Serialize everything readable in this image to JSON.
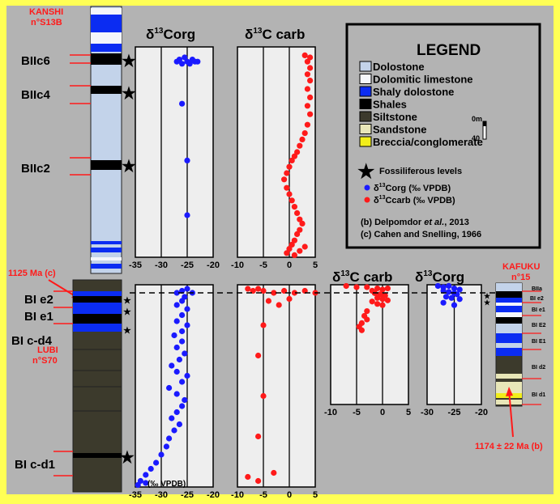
{
  "colors": {
    "frame": "#ffff55",
    "panel": "#b3b3b3",
    "plot_bg": "#eeeeee",
    "red_label": "#ff1a1a",
    "blue_points": "#1a1aff",
    "red_points": "#ff1a1a"
  },
  "kanshi": {
    "name": "KANSHI",
    "site": "n°S13B",
    "levels": [
      "BIIc6",
      "BIIc4",
      "BIIc2"
    ]
  },
  "lubi": {
    "name": "LUBI",
    "site": "n°S70",
    "age": "1125 Ma (c)",
    "levels": [
      "BI e2",
      "BI e1",
      "BI c-d4",
      "BI c-d1"
    ]
  },
  "kafuku": {
    "name": "KAFUKU",
    "site": "n°15",
    "age": "1174 ± 22 Ma (b)",
    "levels": [
      "BIIa",
      "BI e2",
      "BI e1",
      "BI E2",
      "BI E1",
      "BI d2",
      "BI d1"
    ]
  },
  "legend": {
    "title": "LEGEND",
    "lithology": [
      {
        "label": "Dolostone",
        "color": "#c3d3ea"
      },
      {
        "label": "Dolomitic limestone",
        "color": "#f4f6fb"
      },
      {
        "label": "Shaly dolostone",
        "color": "#0b2cf2"
      },
      {
        "label": "Shales",
        "color": "#000000"
      },
      {
        "label": "Siltstone",
        "color": "#3c3a2c"
      },
      {
        "label": "Sandstone",
        "color": "#e8e6b8"
      },
      {
        "label": "Breccia/conglomerate",
        "color": "#f2ee1a"
      }
    ],
    "scale_top": "0m",
    "scale_bottom": "40",
    "fossil": "Fossiliferous levels",
    "series_corg": "δ13Corg (‰ VPDB)",
    "series_ccarb": "δ13Ccarb (‰ VPDB)",
    "ref_b": "(b) Delpomdor et al., 2013",
    "ref_c": "(c) Cahen and Snelling, 1966"
  },
  "chart_data": [
    {
      "type": "scatter",
      "title": "δ13Corg",
      "xlabel": "",
      "xlim": [
        -35,
        -20
      ],
      "xticks": [
        "-35",
        "-30",
        "-25",
        "-20"
      ],
      "ylabel": "",
      "y_unit": "relative stratigraphic position (0 = base of Kanshi log window, 1 = top)",
      "points": [
        [
          -27,
          0.93
        ],
        [
          -26.5,
          0.94
        ],
        [
          -26,
          0.92
        ],
        [
          -25.5,
          0.95
        ],
        [
          -25,
          0.93
        ],
        [
          -24.5,
          0.92
        ],
        [
          -24,
          0.94
        ],
        [
          -23.5,
          0.93
        ],
        [
          -23,
          0.93
        ],
        [
          -26,
          0.73
        ],
        [
          -25,
          0.46
        ],
        [
          -25,
          0.2
        ]
      ],
      "color": "#1a1aff"
    },
    {
      "type": "scatter",
      "title": "δ13C carb",
      "xlim": [
        -10,
        5
      ],
      "xticks": [
        "-10",
        "-5",
        "0",
        "5"
      ],
      "points": [
        [
          3,
          0.96
        ],
        [
          4,
          0.95
        ],
        [
          3.5,
          0.93
        ],
        [
          4,
          0.9
        ],
        [
          3.5,
          0.87
        ],
        [
          4,
          0.84
        ],
        [
          3.5,
          0.8
        ],
        [
          4,
          0.76
        ],
        [
          3.5,
          0.72
        ],
        [
          4,
          0.68
        ],
        [
          3.5,
          0.63
        ],
        [
          3,
          0.59
        ],
        [
          2.5,
          0.56
        ],
        [
          2,
          0.53
        ],
        [
          1.5,
          0.5
        ],
        [
          1,
          0.48
        ],
        [
          0.5,
          0.46
        ],
        [
          0,
          0.43
        ],
        [
          -0.5,
          0.4
        ],
        [
          -1,
          0.37
        ],
        [
          -0.5,
          0.33
        ],
        [
          0,
          0.3
        ],
        [
          0.5,
          0.27
        ],
        [
          1,
          0.24
        ],
        [
          1.5,
          0.21
        ],
        [
          2,
          0.18
        ],
        [
          2.5,
          0.16
        ],
        [
          2,
          0.13
        ],
        [
          1.5,
          0.11
        ],
        [
          1,
          0.08
        ],
        [
          0.5,
          0.06
        ],
        [
          0,
          0.04
        ],
        [
          -0.5,
          0.02
        ],
        [
          1,
          0.01
        ],
        [
          2,
          0.03
        ],
        [
          3,
          0.05
        ]
      ],
      "color": "#ff1a1a"
    },
    {
      "type": "scatter",
      "title": "",
      "xlim": [
        -35,
        -20
      ],
      "xticks": [
        "-35",
        "-30",
        "-25",
        "-20"
      ],
      "xlabel": "(‰ VPDB)",
      "points": [
        [
          -25,
          0.98
        ],
        [
          -26,
          0.97
        ],
        [
          -27,
          0.96
        ],
        [
          -24,
          0.96
        ],
        [
          -25.5,
          0.94
        ],
        [
          -26,
          0.92
        ],
        [
          -27,
          0.9
        ],
        [
          -25,
          0.88
        ],
        [
          -26,
          0.85
        ],
        [
          -27,
          0.82
        ],
        [
          -25,
          0.8
        ],
        [
          -26,
          0.77
        ],
        [
          -27.5,
          0.75
        ],
        [
          -26,
          0.72
        ],
        [
          -27,
          0.69
        ],
        [
          -25.5,
          0.66
        ],
        [
          -26.5,
          0.63
        ],
        [
          -28,
          0.6
        ],
        [
          -27,
          0.57
        ],
        [
          -25,
          0.55
        ],
        [
          -26,
          0.52
        ],
        [
          -28.5,
          0.49
        ],
        [
          -27,
          0.46
        ],
        [
          -25.5,
          0.43
        ],
        [
          -26,
          0.4
        ],
        [
          -27,
          0.37
        ],
        [
          -28,
          0.34
        ],
        [
          -26.5,
          0.31
        ],
        [
          -27.5,
          0.28
        ],
        [
          -28.5,
          0.24
        ],
        [
          -29,
          0.2
        ],
        [
          -30,
          0.16
        ],
        [
          -31,
          0.12
        ],
        [
          -32,
          0.09
        ],
        [
          -33,
          0.06
        ],
        [
          -34,
          0.03
        ],
        [
          -34.5,
          0.01
        ],
        [
          -33,
          0.02
        ]
      ],
      "color": "#1a1aff"
    },
    {
      "type": "scatter",
      "title": "",
      "xlim": [
        -10,
        5
      ],
      "xticks": [
        "-10",
        "-5",
        "0",
        "5"
      ],
      "points": [
        [
          -8,
          0.98
        ],
        [
          -7,
          0.97
        ],
        [
          -6,
          0.98
        ],
        [
          -5,
          0.97
        ],
        [
          -3,
          0.96
        ],
        [
          -1,
          0.97
        ],
        [
          1,
          0.96
        ],
        [
          3,
          0.97
        ],
        [
          5,
          0.96
        ],
        [
          -4,
          0.92
        ],
        [
          -2,
          0.9
        ],
        [
          0,
          0.93
        ],
        [
          -5,
          0.8
        ],
        [
          -6,
          0.65
        ],
        [
          -5,
          0.45
        ],
        [
          -6,
          0.25
        ],
        [
          -8,
          0.05
        ],
        [
          -3,
          0.07
        ],
        [
          -6,
          0.03
        ]
      ],
      "color": "#ff1a1a"
    },
    {
      "type": "scatter",
      "title": "δ13C carb",
      "xlim": [
        -10,
        5
      ],
      "xticks": [
        "-10",
        "-5",
        "0",
        "5"
      ],
      "points": [
        [
          -7,
          0.99
        ],
        [
          -5,
          0.98
        ],
        [
          -3,
          0.98
        ],
        [
          -1,
          0.97
        ],
        [
          0,
          0.96
        ],
        [
          1,
          0.97
        ],
        [
          -2,
          0.95
        ],
        [
          -1.5,
          0.93
        ],
        [
          -0.5,
          0.92
        ],
        [
          0.5,
          0.91
        ],
        [
          -1,
          0.89
        ],
        [
          0,
          0.88
        ],
        [
          1,
          0.87
        ],
        [
          -2,
          0.86
        ],
        [
          -1,
          0.84
        ],
        [
          0,
          0.83
        ],
        [
          -3,
          0.78
        ],
        [
          -3.5,
          0.74
        ],
        [
          -3,
          0.71
        ],
        [
          -4,
          0.68
        ],
        [
          -4.5,
          0.65
        ],
        [
          -4,
          0.62
        ]
      ],
      "color": "#ff1a1a"
    },
    {
      "type": "scatter",
      "title": "δ13Corg",
      "xlim": [
        -30,
        -20
      ],
      "xticks": [
        "-30",
        "-25",
        "-20"
      ],
      "points": [
        [
          -28,
          0.99
        ],
        [
          -27,
          0.98
        ],
        [
          -26,
          0.99
        ],
        [
          -25,
          0.97
        ],
        [
          -24,
          0.96
        ],
        [
          -27,
          0.95
        ],
        [
          -26,
          0.94
        ],
        [
          -25,
          0.93
        ],
        [
          -24.5,
          0.92
        ],
        [
          -26.5,
          0.9
        ],
        [
          -25.5,
          0.89
        ],
        [
          -24,
          0.88
        ],
        [
          -27,
          0.85
        ],
        [
          -25,
          0.83
        ]
      ],
      "color": "#1a1aff"
    }
  ]
}
